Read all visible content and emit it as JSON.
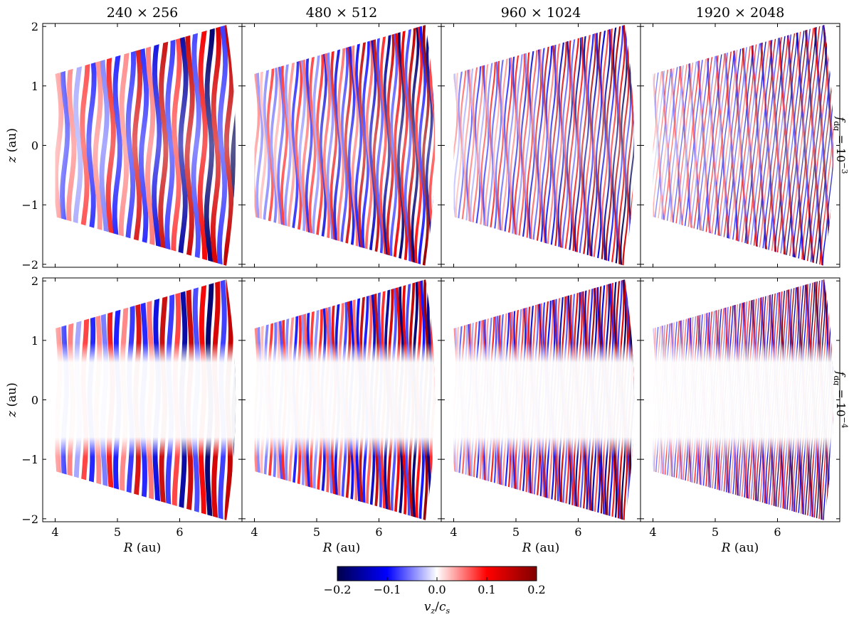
{
  "chart_data": {
    "type": "heatmap",
    "title": "",
    "columns": [
      "240 × 256",
      "480 × 512",
      "960 × 1024",
      "1920 × 2048"
    ],
    "rows": [
      {
        "label": "f_dg = 10^−3",
        "label_base": "f",
        "label_sub": "dg",
        "label_eq": " = 10",
        "label_exp": "−3",
        "active_band": [
          0.0,
          2.05
        ]
      },
      {
        "label": "f_dg = 10^−4",
        "label_base": "f",
        "label_sub": "dg",
        "label_eq": " = 10",
        "label_exp": "−4",
        "active_band": [
          0.75,
          2.05
        ]
      }
    ],
    "xlabel": "R (au)",
    "xlabel_var": "R",
    "xlabel_unit": " (au)",
    "ylabel": "z (au)",
    "ylabel_var": "z",
    "ylabel_unit": " (au)",
    "xlim": [
      3.8,
      7.0
    ],
    "ylim": [
      -2.05,
      2.05
    ],
    "xticks": [
      4,
      5,
      6
    ],
    "xticklabels": [
      "4",
      "5",
      "6"
    ],
    "yticks": [
      -2,
      -1,
      0,
      1,
      2
    ],
    "yticklabels": [
      "−2",
      "−1",
      "0",
      "1",
      "2"
    ],
    "domain": {
      "r_min": 4.0,
      "r_max": 6.75,
      "z_slope": 0.3
    },
    "colorbar": {
      "label": "v_z/c_s",
      "label_a": "v",
      "label_a_sub": "z",
      "label_slash": "/",
      "label_b": "c",
      "label_b_sub": "s",
      "vmin": -0.2,
      "vmax": 0.2,
      "ticks": [
        -0.2,
        -0.1,
        0.0,
        0.1,
        0.2
      ],
      "ticklabels": [
        "−0.2",
        "−0.1",
        "0.0",
        "0.1",
        "0.2"
      ],
      "colormap": "seismic",
      "colors": {
        "low": "#00004c",
        "mid_low": "#0000ff",
        "mid": "#ffffff",
        "mid_high": "#ff0000",
        "high": "#800000"
      }
    },
    "wave_counts": [
      14,
      26,
      44,
      70
    ]
  }
}
